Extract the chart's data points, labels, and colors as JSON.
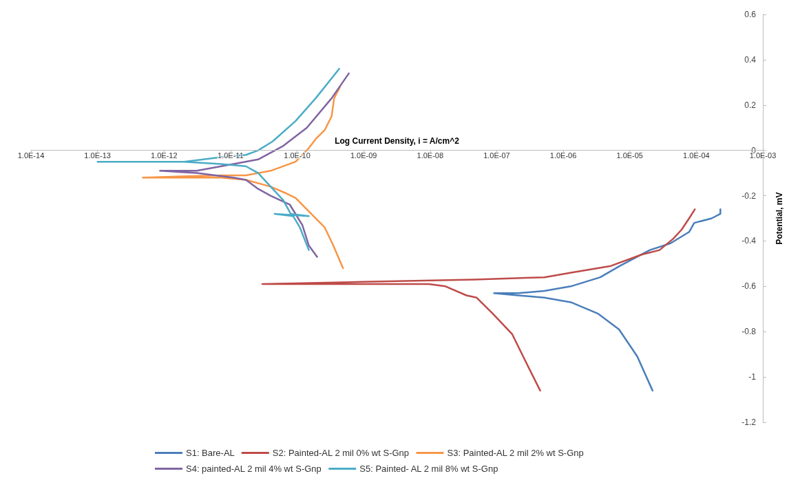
{
  "chart_data": {
    "type": "line",
    "xlabel": "Log Current Density, i = A/cm^2",
    "ylabel": "Potential, mV",
    "log": "x",
    "grid": false,
    "legend": "bottom",
    "xlim": [
      1e-14,
      0.001
    ],
    "xticks": [
      {
        "value": 1e-14,
        "label": "1.0E-14"
      },
      {
        "value": 1e-13,
        "label": "1.0E-13"
      },
      {
        "value": 1e-12,
        "label": "1.0E-12"
      },
      {
        "value": 1e-11,
        "label": "1.0E-11"
      },
      {
        "value": 1e-10,
        "label": "1.0E-10"
      },
      {
        "value": 1e-09,
        "label": "1.0E-09"
      },
      {
        "value": 1e-08,
        "label": "1.0E-08"
      },
      {
        "value": 1e-07,
        "label": "1.0E-07"
      },
      {
        "value": 1e-06,
        "label": "1.0E-06"
      },
      {
        "value": 1e-05,
        "label": "1.0E-05"
      },
      {
        "value": 0.0001,
        "label": "1.0E-04"
      },
      {
        "value": 0.001,
        "label": "1.0E-03"
      }
    ],
    "ylim": [
      -1.2,
      0.6
    ],
    "yticks": [
      -1.2,
      -1,
      -0.8,
      -0.6,
      -0.4,
      -0.2,
      0,
      0.2,
      0.4,
      0.6
    ],
    "series": [
      {
        "name": "S1: Bare-AL",
        "color": "#4a7ebb",
        "x": [
          2.2e-05,
          1.3e-05,
          6.9e-06,
          3.3e-06,
          1.3e-06,
          5.2e-07,
          2.1e-07,
          9.1e-08,
          2.1e-07,
          5.2e-07,
          1.3e-06,
          3.6e-06,
          7.1e-06,
          2e-05,
          4.1e-05,
          7.8e-05,
          9.3e-05,
          0.00017,
          0.00023,
          0.00023
        ],
        "values": [
          -1.06,
          -0.91,
          -0.79,
          -0.72,
          -0.67,
          -0.65,
          -0.64,
          -0.63,
          -0.63,
          -0.62,
          -0.6,
          -0.56,
          -0.51,
          -0.44,
          -0.41,
          -0.36,
          -0.32,
          -0.3,
          -0.28,
          -0.26
        ]
      },
      {
        "name": "S2: Painted-AL 2 mil 0% wt S-Gnp",
        "color": "#be4b48",
        "x": [
          4.5e-07,
          2.6e-07,
          1.7e-07,
          8.7e-08,
          5e-08,
          3.5e-08,
          1.7e-08,
          9.5e-09,
          3e-11,
          1e-09,
          4.6e-08,
          5.2e-07,
          1.3e-06,
          5.2e-06,
          1.5e-05,
          2.8e-05,
          4.5e-05,
          6e-05,
          7.8e-05,
          9.5e-05
        ],
        "values": [
          -1.06,
          -0.92,
          -0.81,
          -0.72,
          -0.65,
          -0.64,
          -0.6,
          -0.59,
          -0.59,
          -0.58,
          -0.57,
          -0.56,
          -0.54,
          -0.51,
          -0.46,
          -0.44,
          -0.39,
          -0.35,
          -0.3,
          -0.26
        ]
      },
      {
        "name": "S3: Painted-AL 2 mil 2% wt S-Gnp",
        "color": "#f79646",
        "x": [
          4.9e-10,
          3.5e-10,
          2.6e-10,
          1.4e-10,
          9.5e-11,
          6.9e-11,
          4e-11,
          1.7e-11,
          7.2e-12,
          1.3e-12,
          4.8e-13,
          7.2e-12,
          1.7e-11,
          4e-11,
          9.5e-11,
          1.5e-10,
          1.9e-10,
          2.6e-10,
          3.3e-10,
          3.6e-10,
          4.4e-10
        ],
        "values": [
          -0.52,
          -0.42,
          -0.34,
          -0.26,
          -0.21,
          -0.19,
          -0.16,
          -0.13,
          -0.12,
          -0.12,
          -0.12,
          -0.11,
          -0.11,
          -0.09,
          -0.05,
          0.01,
          0.05,
          0.09,
          0.15,
          0.23,
          0.28
        ]
      },
      {
        "name": "S4: painted-AL 2 mil 4% wt S-Gnp",
        "color": "#8064a2",
        "x": [
          2e-10,
          1.5e-10,
          1.2e-10,
          7.8e-11,
          4e-11,
          2.6e-11,
          1.7e-11,
          1.1e-11,
          3.1e-12,
          8.7e-13,
          3.1e-12,
          1.1e-11,
          2.6e-11,
          6.2e-11,
          1.4e-10,
          3.3e-10,
          6e-10
        ],
        "values": [
          -0.47,
          -0.42,
          -0.33,
          -0.24,
          -0.2,
          -0.17,
          -0.13,
          -0.12,
          -0.1,
          -0.09,
          -0.09,
          -0.06,
          -0.04,
          0.02,
          0.1,
          0.23,
          0.34
        ]
      },
      {
        "name": "S5: Painted- AL 2 mil 8% wt S-Gnp",
        "color": "#4bacc6",
        "x": [
          1.5e-10,
          1.1e-10,
          8.7e-11,
          4.6e-11,
          1.5e-10,
          8e-11,
          6.2e-11,
          4e-11,
          2.6e-11,
          1.7e-11,
          7.2e-12,
          2e-12,
          1e-13,
          2e-12,
          7.2e-12,
          1.7e-11,
          2.6e-11,
          4.3e-11,
          9.5e-11,
          1.9e-10,
          4.3e-10
        ],
        "values": [
          -0.44,
          -0.34,
          -0.29,
          -0.28,
          -0.29,
          -0.28,
          -0.22,
          -0.16,
          -0.1,
          -0.07,
          -0.06,
          -0.05,
          -0.05,
          -0.05,
          -0.03,
          -0.02,
          0.0,
          0.04,
          0.13,
          0.23,
          0.36
        ]
      }
    ]
  }
}
